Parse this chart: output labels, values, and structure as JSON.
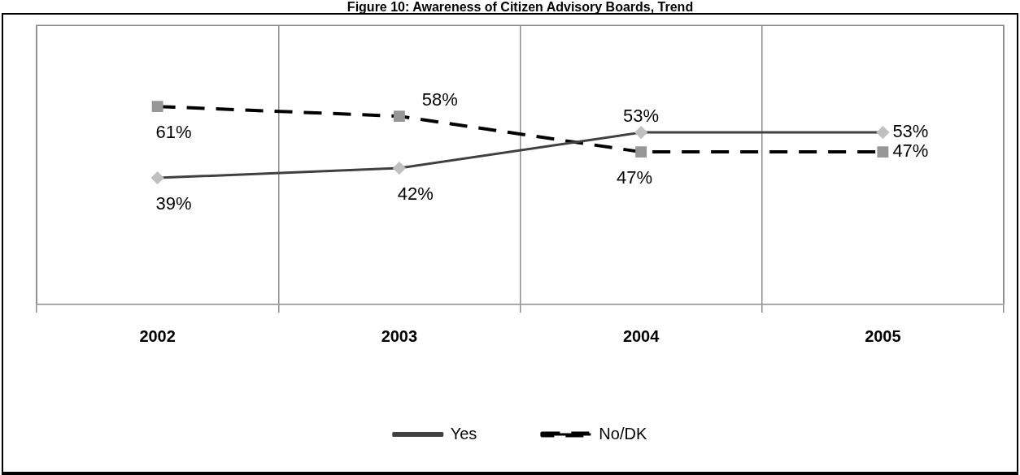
{
  "chart_data": {
    "type": "line",
    "title": "Figure 10: Awareness of Citizen Advisory Boards, Trend",
    "categories": [
      "2002",
      "2003",
      "2004",
      "2005"
    ],
    "series": [
      {
        "name": "Yes",
        "color": "#404040",
        "values": [
          39,
          42,
          53,
          53
        ],
        "value_labels": [
          "39%",
          "42%",
          "53%",
          "53%"
        ],
        "marker": "diamond",
        "line_style": "solid"
      },
      {
        "name": "No/DK",
        "color": "#000000",
        "values": [
          61,
          58,
          47,
          47
        ],
        "value_labels": [
          "61%",
          "58%",
          "47%",
          "47%"
        ],
        "marker": "square",
        "line_style": "dashed"
      }
    ],
    "ylim": [
      0,
      86
    ],
    "grid": "x",
    "legend": "bottom",
    "tick_labels": "x"
  }
}
